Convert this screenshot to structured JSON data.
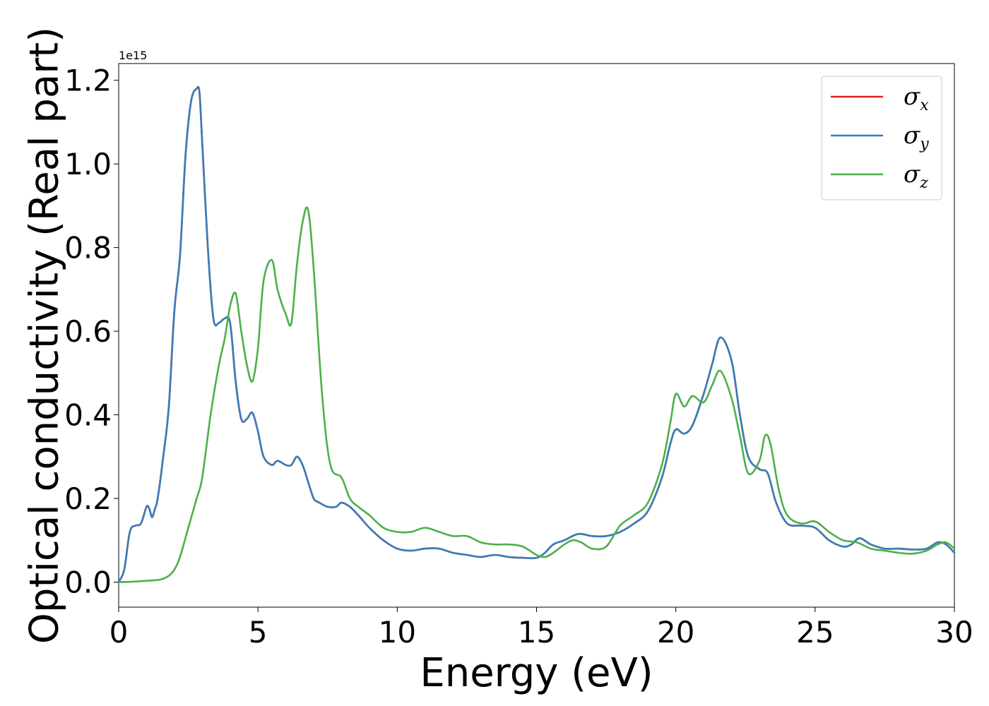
{
  "chart_data": {
    "type": "line",
    "xlabel": "Energy (eV)",
    "ylabel": "Optical conductivity (Real part)",
    "y_offset_label": "1e15",
    "xlim": [
      0,
      30
    ],
    "ylim": [
      -0.06,
      1.24
    ],
    "x_ticks": [
      0,
      5,
      10,
      15,
      20,
      25,
      30
    ],
    "x_tick_labels": [
      "0",
      "5",
      "10",
      "15",
      "20",
      "25",
      "30"
    ],
    "y_ticks": [
      0.0,
      0.2,
      0.4,
      0.6,
      0.8,
      1.0,
      1.2
    ],
    "y_tick_labels": [
      "0.0",
      "0.2",
      "0.4",
      "0.6",
      "0.8",
      "1.0",
      "1.2"
    ],
    "grid": false,
    "legend_position": "top-right",
    "series": [
      {
        "name": "σx",
        "symbol": "σ",
        "subscript": "x",
        "color": "#e41a1c",
        "x": [
          0.0,
          0.2,
          0.4,
          0.6,
          0.8,
          1.0,
          1.1,
          1.2,
          1.3,
          1.4,
          1.6,
          1.8,
          2.0,
          2.2,
          2.4,
          2.6,
          2.8,
          2.9,
          3.0,
          3.2,
          3.4,
          3.6,
          3.8,
          4.0,
          4.2,
          4.4,
          4.6,
          4.8,
          5.0,
          5.2,
          5.5,
          5.7,
          6.0,
          6.2,
          6.4,
          6.6,
          6.8,
          7.0,
          7.2,
          7.5,
          7.8,
          8.0,
          8.3,
          8.6,
          9.0,
          9.5,
          10.0,
          10.5,
          11.0,
          11.5,
          12.0,
          12.5,
          13.0,
          13.5,
          14.0,
          14.5,
          15.0,
          15.3,
          15.6,
          16.0,
          16.5,
          17.0,
          17.5,
          18.0,
          18.5,
          19.0,
          19.5,
          19.8,
          20.0,
          20.3,
          20.6,
          21.0,
          21.3,
          21.6,
          22.0,
          22.3,
          22.6,
          23.0,
          23.3,
          23.6,
          24.0,
          24.5,
          25.0,
          25.5,
          26.0,
          26.3,
          26.6,
          27.0,
          27.5,
          28.0,
          28.5,
          29.0,
          29.4,
          29.7,
          30.0
        ],
        "values": [
          0.0,
          0.03,
          0.12,
          0.135,
          0.14,
          0.18,
          0.175,
          0.155,
          0.175,
          0.2,
          0.3,
          0.42,
          0.65,
          0.78,
          1.02,
          1.15,
          1.18,
          1.17,
          1.05,
          0.8,
          0.63,
          0.62,
          0.63,
          0.62,
          0.48,
          0.39,
          0.39,
          0.405,
          0.36,
          0.3,
          0.28,
          0.29,
          0.28,
          0.28,
          0.3,
          0.28,
          0.24,
          0.2,
          0.19,
          0.18,
          0.18,
          0.19,
          0.18,
          0.16,
          0.13,
          0.1,
          0.08,
          0.075,
          0.08,
          0.08,
          0.07,
          0.065,
          0.06,
          0.065,
          0.06,
          0.058,
          0.058,
          0.07,
          0.09,
          0.1,
          0.115,
          0.11,
          0.11,
          0.12,
          0.14,
          0.17,
          0.25,
          0.33,
          0.365,
          0.355,
          0.375,
          0.45,
          0.52,
          0.585,
          0.53,
          0.4,
          0.3,
          0.27,
          0.26,
          0.19,
          0.14,
          0.135,
          0.13,
          0.1,
          0.085,
          0.09,
          0.105,
          0.09,
          0.08,
          0.08,
          0.078,
          0.08,
          0.095,
          0.09,
          0.07
        ]
      },
      {
        "name": "σy",
        "symbol": "σ",
        "subscript": "y",
        "color": "#377eb8",
        "x": [
          0.0,
          0.2,
          0.4,
          0.6,
          0.8,
          1.0,
          1.1,
          1.2,
          1.3,
          1.4,
          1.6,
          1.8,
          2.0,
          2.2,
          2.4,
          2.6,
          2.8,
          2.9,
          3.0,
          3.2,
          3.4,
          3.6,
          3.8,
          4.0,
          4.2,
          4.4,
          4.6,
          4.8,
          5.0,
          5.2,
          5.5,
          5.7,
          6.0,
          6.2,
          6.4,
          6.6,
          6.8,
          7.0,
          7.2,
          7.5,
          7.8,
          8.0,
          8.3,
          8.6,
          9.0,
          9.5,
          10.0,
          10.5,
          11.0,
          11.5,
          12.0,
          12.5,
          13.0,
          13.5,
          14.0,
          14.5,
          15.0,
          15.3,
          15.6,
          16.0,
          16.5,
          17.0,
          17.5,
          18.0,
          18.5,
          19.0,
          19.5,
          19.8,
          20.0,
          20.3,
          20.6,
          21.0,
          21.3,
          21.6,
          22.0,
          22.3,
          22.6,
          23.0,
          23.3,
          23.6,
          24.0,
          24.5,
          25.0,
          25.5,
          26.0,
          26.3,
          26.6,
          27.0,
          27.5,
          28.0,
          28.5,
          29.0,
          29.4,
          29.7,
          30.0
        ],
        "values": [
          0.0,
          0.03,
          0.12,
          0.135,
          0.14,
          0.18,
          0.175,
          0.155,
          0.175,
          0.2,
          0.3,
          0.42,
          0.65,
          0.78,
          1.02,
          1.15,
          1.18,
          1.17,
          1.05,
          0.8,
          0.63,
          0.62,
          0.63,
          0.62,
          0.48,
          0.39,
          0.39,
          0.405,
          0.36,
          0.3,
          0.28,
          0.29,
          0.28,
          0.28,
          0.3,
          0.28,
          0.24,
          0.2,
          0.19,
          0.18,
          0.18,
          0.19,
          0.18,
          0.16,
          0.13,
          0.1,
          0.08,
          0.075,
          0.08,
          0.08,
          0.07,
          0.065,
          0.06,
          0.065,
          0.06,
          0.058,
          0.058,
          0.07,
          0.09,
          0.1,
          0.115,
          0.11,
          0.11,
          0.12,
          0.14,
          0.17,
          0.25,
          0.33,
          0.365,
          0.355,
          0.375,
          0.45,
          0.52,
          0.585,
          0.53,
          0.4,
          0.3,
          0.27,
          0.26,
          0.19,
          0.14,
          0.135,
          0.13,
          0.1,
          0.085,
          0.09,
          0.105,
          0.09,
          0.08,
          0.08,
          0.078,
          0.08,
          0.095,
          0.09,
          0.07
        ]
      },
      {
        "name": "σz",
        "symbol": "σ",
        "subscript": "z",
        "color": "#4daf4a",
        "x": [
          0.0,
          0.5,
          1.0,
          1.5,
          1.8,
          2.0,
          2.2,
          2.5,
          2.8,
          3.0,
          3.3,
          3.6,
          3.8,
          4.0,
          4.2,
          4.4,
          4.6,
          4.8,
          5.0,
          5.2,
          5.5,
          5.7,
          6.0,
          6.2,
          6.4,
          6.6,
          6.8,
          7.0,
          7.3,
          7.6,
          8.0,
          8.3,
          8.6,
          9.0,
          9.5,
          10.0,
          10.5,
          11.0,
          11.5,
          12.0,
          12.5,
          13.0,
          13.5,
          14.0,
          14.5,
          15.0,
          15.3,
          15.6,
          16.0,
          16.3,
          16.6,
          17.0,
          17.5,
          18.0,
          18.5,
          19.0,
          19.5,
          19.8,
          20.0,
          20.3,
          20.6,
          21.0,
          21.3,
          21.6,
          22.0,
          22.3,
          22.6,
          23.0,
          23.2,
          23.4,
          23.7,
          24.0,
          24.5,
          25.0,
          25.5,
          26.0,
          26.5,
          27.0,
          27.5,
          28.0,
          28.5,
          29.0,
          29.4,
          29.7,
          30.0
        ],
        "values": [
          0.0,
          0.001,
          0.003,
          0.006,
          0.015,
          0.03,
          0.06,
          0.13,
          0.2,
          0.25,
          0.4,
          0.52,
          0.58,
          0.66,
          0.69,
          0.6,
          0.52,
          0.48,
          0.56,
          0.72,
          0.77,
          0.7,
          0.64,
          0.62,
          0.76,
          0.86,
          0.89,
          0.75,
          0.45,
          0.28,
          0.25,
          0.2,
          0.18,
          0.16,
          0.13,
          0.12,
          0.12,
          0.13,
          0.12,
          0.11,
          0.11,
          0.095,
          0.09,
          0.09,
          0.085,
          0.065,
          0.06,
          0.07,
          0.09,
          0.1,
          0.095,
          0.08,
          0.085,
          0.135,
          0.16,
          0.19,
          0.28,
          0.38,
          0.45,
          0.42,
          0.445,
          0.43,
          0.47,
          0.505,
          0.44,
          0.35,
          0.26,
          0.29,
          0.35,
          0.33,
          0.22,
          0.16,
          0.14,
          0.145,
          0.12,
          0.1,
          0.095,
          0.08,
          0.075,
          0.07,
          0.068,
          0.075,
          0.09,
          0.095,
          0.08
        ]
      }
    ]
  }
}
